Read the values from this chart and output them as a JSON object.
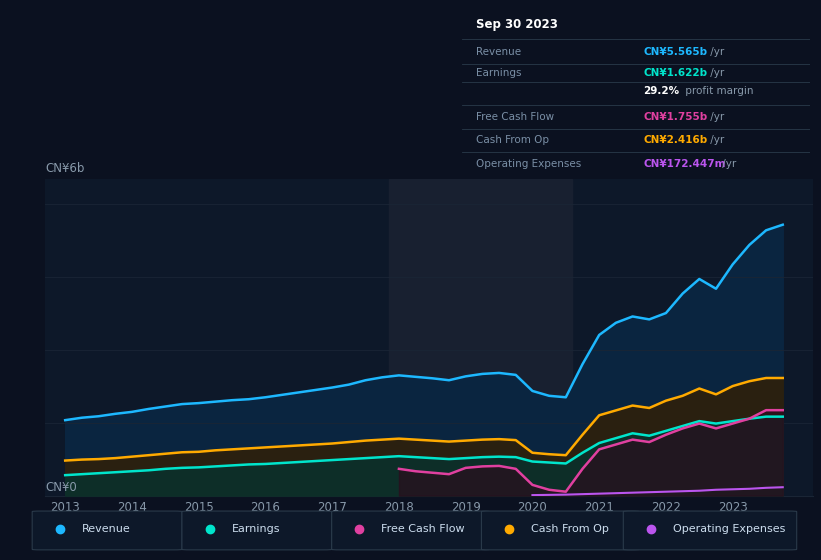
{
  "background_color": "#0b1120",
  "plot_bg_color": "#0d1829",
  "grid_color": "#1a2535",
  "ylabel": "CN¥6b",
  "y0label": "CN¥0",
  "ylim": [
    0,
    6.5
  ],
  "xlim": [
    2012.7,
    2024.2
  ],
  "xticks": [
    2013,
    2014,
    2015,
    2016,
    2017,
    2018,
    2019,
    2020,
    2021,
    2022,
    2023
  ],
  "highlight_start": 2017.85,
  "highlight_end": 2020.6,
  "title_box": {
    "date": "Sep 30 2023",
    "rows": [
      {
        "label": "Revenue",
        "value": "CN¥5.565b",
        "suffix": " /yr",
        "value_color": "#1db8ff",
        "label_color": "#7a8fa6"
      },
      {
        "label": "Earnings",
        "value": "CN¥1.622b",
        "suffix": " /yr",
        "value_color": "#00e5cc",
        "label_color": "#7a8fa6"
      },
      {
        "label": "",
        "value": "29.2%",
        "suffix": " profit margin",
        "value_color": "#ffffff",
        "label_color": "#7a8fa6"
      },
      {
        "label": "Free Cash Flow",
        "value": "CN¥1.755b",
        "suffix": " /yr",
        "value_color": "#e040a0",
        "label_color": "#7a8fa6"
      },
      {
        "label": "Cash From Op",
        "value": "CN¥2.416b",
        "suffix": " /yr",
        "value_color": "#ffaa00",
        "label_color": "#7a8fa6"
      },
      {
        "label": "Operating Expenses",
        "value": "CN¥172.447m",
        "suffix": " /yr",
        "value_color": "#bb55ee",
        "label_color": "#7a8fa6"
      }
    ]
  },
  "rev_color": "#1db8ff",
  "earn_color": "#00e5cc",
  "fcf_color": "#e040a0",
  "cashop_color": "#ffaa00",
  "opex_color": "#bb55ee",
  "rev_fill": "#0a2540",
  "earn_fill": "#0d2e28",
  "cashop_fill": "#2a2010",
  "fcf_fill": "#2a0e1e",
  "x": [
    2013.0,
    2013.25,
    2013.5,
    2013.75,
    2014.0,
    2014.25,
    2014.5,
    2014.75,
    2015.0,
    2015.25,
    2015.5,
    2015.75,
    2016.0,
    2016.25,
    2016.5,
    2016.75,
    2017.0,
    2017.25,
    2017.5,
    2017.75,
    2018.0,
    2018.25,
    2018.5,
    2018.75,
    2019.0,
    2019.25,
    2019.5,
    2019.75,
    2020.0,
    2020.25,
    2020.5,
    2020.75,
    2021.0,
    2021.25,
    2021.5,
    2021.75,
    2022.0,
    2022.25,
    2022.5,
    2022.75,
    2023.0,
    2023.25,
    2023.5,
    2023.75
  ],
  "revenue": [
    1.55,
    1.6,
    1.63,
    1.68,
    1.72,
    1.78,
    1.83,
    1.88,
    1.9,
    1.93,
    1.96,
    1.98,
    2.02,
    2.07,
    2.12,
    2.17,
    2.22,
    2.28,
    2.37,
    2.43,
    2.47,
    2.44,
    2.41,
    2.37,
    2.45,
    2.5,
    2.52,
    2.48,
    2.15,
    2.05,
    2.02,
    2.7,
    3.3,
    3.55,
    3.68,
    3.62,
    3.75,
    4.15,
    4.45,
    4.25,
    4.75,
    5.15,
    5.45,
    5.565
  ],
  "cash_from_op": [
    0.72,
    0.74,
    0.75,
    0.77,
    0.8,
    0.83,
    0.86,
    0.89,
    0.9,
    0.93,
    0.95,
    0.97,
    0.99,
    1.01,
    1.03,
    1.05,
    1.07,
    1.1,
    1.13,
    1.15,
    1.17,
    1.15,
    1.13,
    1.11,
    1.13,
    1.15,
    1.16,
    1.14,
    0.88,
    0.85,
    0.83,
    1.25,
    1.65,
    1.75,
    1.85,
    1.8,
    1.95,
    2.05,
    2.2,
    2.08,
    2.25,
    2.35,
    2.416,
    2.416
  ],
  "earnings": [
    0.42,
    0.44,
    0.46,
    0.48,
    0.5,
    0.52,
    0.55,
    0.57,
    0.58,
    0.6,
    0.62,
    0.64,
    0.65,
    0.67,
    0.69,
    0.71,
    0.73,
    0.75,
    0.77,
    0.79,
    0.81,
    0.79,
    0.77,
    0.75,
    0.77,
    0.79,
    0.8,
    0.79,
    0.7,
    0.68,
    0.66,
    0.88,
    1.08,
    1.18,
    1.28,
    1.23,
    1.33,
    1.43,
    1.53,
    1.48,
    1.53,
    1.58,
    1.622,
    1.622
  ],
  "free_cash_flow": [
    null,
    null,
    null,
    null,
    null,
    null,
    null,
    null,
    null,
    null,
    null,
    null,
    null,
    null,
    null,
    null,
    null,
    null,
    null,
    null,
    0.55,
    0.5,
    0.47,
    0.44,
    0.57,
    0.6,
    0.61,
    0.55,
    0.22,
    0.12,
    0.08,
    0.55,
    0.95,
    1.05,
    1.15,
    1.1,
    1.25,
    1.38,
    1.48,
    1.38,
    1.48,
    1.58,
    1.755,
    1.755
  ],
  "operating_expenses": [
    null,
    null,
    null,
    null,
    null,
    null,
    null,
    null,
    null,
    null,
    null,
    null,
    null,
    null,
    null,
    null,
    null,
    null,
    null,
    null,
    null,
    null,
    null,
    null,
    null,
    null,
    null,
    null,
    0.01,
    0.015,
    0.02,
    0.03,
    0.04,
    0.05,
    0.06,
    0.07,
    0.08,
    0.09,
    0.1,
    0.12,
    0.13,
    0.14,
    0.16,
    0.172
  ],
  "legend": [
    {
      "label": "Revenue",
      "color": "#1db8ff"
    },
    {
      "label": "Earnings",
      "color": "#00e5cc"
    },
    {
      "label": "Free Cash Flow",
      "color": "#e040a0"
    },
    {
      "label": "Cash From Op",
      "color": "#ffaa00"
    },
    {
      "label": "Operating Expenses",
      "color": "#bb55ee"
    }
  ]
}
